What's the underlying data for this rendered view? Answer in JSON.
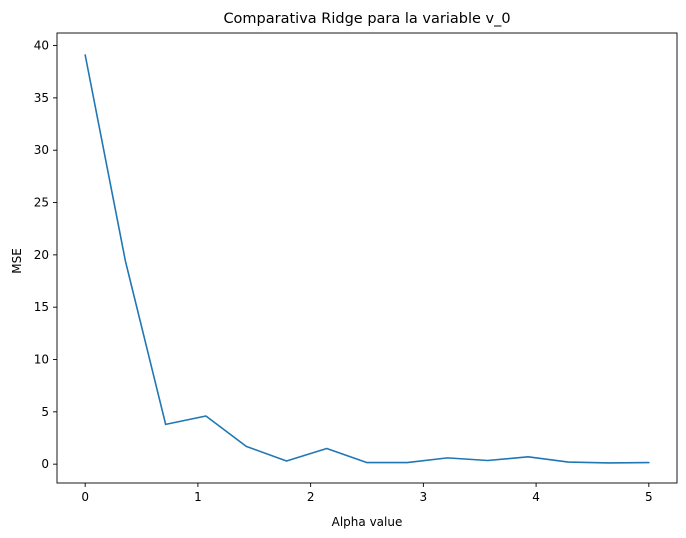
{
  "chart_data": {
    "type": "line",
    "title": "Comparativa Ridge para la variable v_0",
    "xlabel": "Alpha value",
    "ylabel": "MSE",
    "xlim": [
      -0.25,
      5.25
    ],
    "ylim": [
      -1.8,
      41.2
    ],
    "xticks": [
      0,
      1,
      2,
      3,
      4,
      5
    ],
    "yticks": [
      0,
      5,
      10,
      15,
      20,
      25,
      30,
      35,
      40
    ],
    "grid": false,
    "series": [
      {
        "color": "#1f77b4",
        "x": [
          0.0,
          0.357,
          0.714,
          1.071,
          1.429,
          1.786,
          2.143,
          2.5,
          2.857,
          3.214,
          3.571,
          3.929,
          4.286,
          4.643,
          5.0
        ],
        "y": [
          39.1,
          19.4,
          3.8,
          4.6,
          1.7,
          0.3,
          1.5,
          0.15,
          0.15,
          0.6,
          0.35,
          0.7,
          0.2,
          0.12,
          0.15
        ]
      }
    ]
  }
}
